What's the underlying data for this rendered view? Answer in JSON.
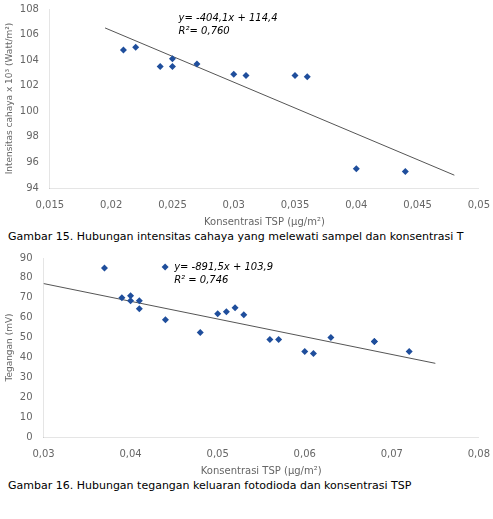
{
  "chart_data": [
    {
      "type": "scatter",
      "series": [
        {
          "type": "scatter",
          "marker": "diamond",
          "color": "#1F4E9C",
          "x": [
            0.021,
            0.022,
            0.024,
            0.025,
            0.025,
            0.027,
            0.03,
            0.031,
            0.035,
            0.036,
            0.04,
            0.044
          ],
          "values": [
            104.8,
            105.0,
            103.5,
            103.5,
            104.1,
            103.7,
            102.9,
            102.8,
            102.8,
            102.7,
            95.5,
            95.3
          ]
        },
        {
          "type": "line",
          "line_style": "solid",
          "color": "#555555",
          "x": [
            0.0195,
            0.048
          ],
          "values": [
            106.52005,
            95.0032
          ]
        }
      ],
      "xlabel": "Konsentrasi TSP (μg/m²)",
      "ylabel": "Intensitas cahaya x 10³ (Watt/m²)",
      "xlim": [
        0.015,
        0.05
      ],
      "ylim": [
        94,
        108
      ],
      "xticks": [
        {
          "value": 0.015,
          "label": "0,015"
        },
        {
          "value": 0.02,
          "label": "0,02"
        },
        {
          "value": 0.025,
          "label": "0,025"
        },
        {
          "value": 0.03,
          "label": "0,03"
        },
        {
          "value": 0.035,
          "label": "0,035"
        },
        {
          "value": 0.04,
          "label": "0,04"
        },
        {
          "value": 0.045,
          "label": "0,045"
        },
        {
          "value": 0.05,
          "label": "0,05"
        }
      ],
      "yticks": [
        94,
        96,
        98,
        100,
        102,
        104,
        106,
        108
      ],
      "grid": false,
      "annotations": [
        {
          "text": "y= -404,1x + 114,4"
        },
        {
          "text": "R²= 0,760"
        }
      ],
      "caption": "Gambar 15. Hubungan intensitas cahaya yang melewati sampel dan konsentrasi T"
    },
    {
      "type": "scatter",
      "series": [
        {
          "type": "scatter",
          "marker": "diamond",
          "color": "#1F4E9C",
          "x": [
            0.037,
            0.039,
            0.04,
            0.04,
            0.041,
            0.041,
            0.044,
            0.048,
            0.05,
            0.051,
            0.052,
            0.053,
            0.056,
            0.057,
            0.06,
            0.061,
            0.063,
            0.068,
            0.068,
            0.072
          ],
          "values": [
            85.0,
            70.0,
            71.0,
            68.5,
            64.5,
            68.5,
            59.0,
            52.5,
            62.0,
            63.0,
            65.0,
            61.5,
            49.0,
            49.0,
            43.0,
            42.0,
            50.0,
            48.0,
            48.0,
            43.0
          ]
        },
        {
          "type": "line",
          "line_style": "solid",
          "color": "#555555",
          "x": [
            0.03,
            0.075
          ],
          "values": [
            77.155,
            37.0375
          ]
        }
      ],
      "xlabel": "Konsentrasi TSP (μg/m²)",
      "ylabel": "Tegangan (mV)",
      "xlim": [
        0.03,
        0.08
      ],
      "ylim": [
        0,
        90
      ],
      "xticks": [
        {
          "value": 0.03,
          "label": "0,03"
        },
        {
          "value": 0.04,
          "label": "0,04"
        },
        {
          "value": 0.05,
          "label": "0,05"
        },
        {
          "value": 0.06,
          "label": "0,06"
        },
        {
          "value": 0.07,
          "label": "0,07"
        },
        {
          "value": 0.08,
          "label": "0,08"
        }
      ],
      "yticks": [
        0,
        10,
        20,
        30,
        40,
        50,
        60,
        70,
        80,
        90
      ],
      "grid": false,
      "annotations": [
        {
          "text": "y= -891,5x + 103,9",
          "marker": "diamond"
        },
        {
          "text": "R² = 0,746"
        }
      ],
      "caption": "Gambar 16. Hubungan tegangan keluaran fotodioda dan konsentrasi TSP"
    }
  ]
}
